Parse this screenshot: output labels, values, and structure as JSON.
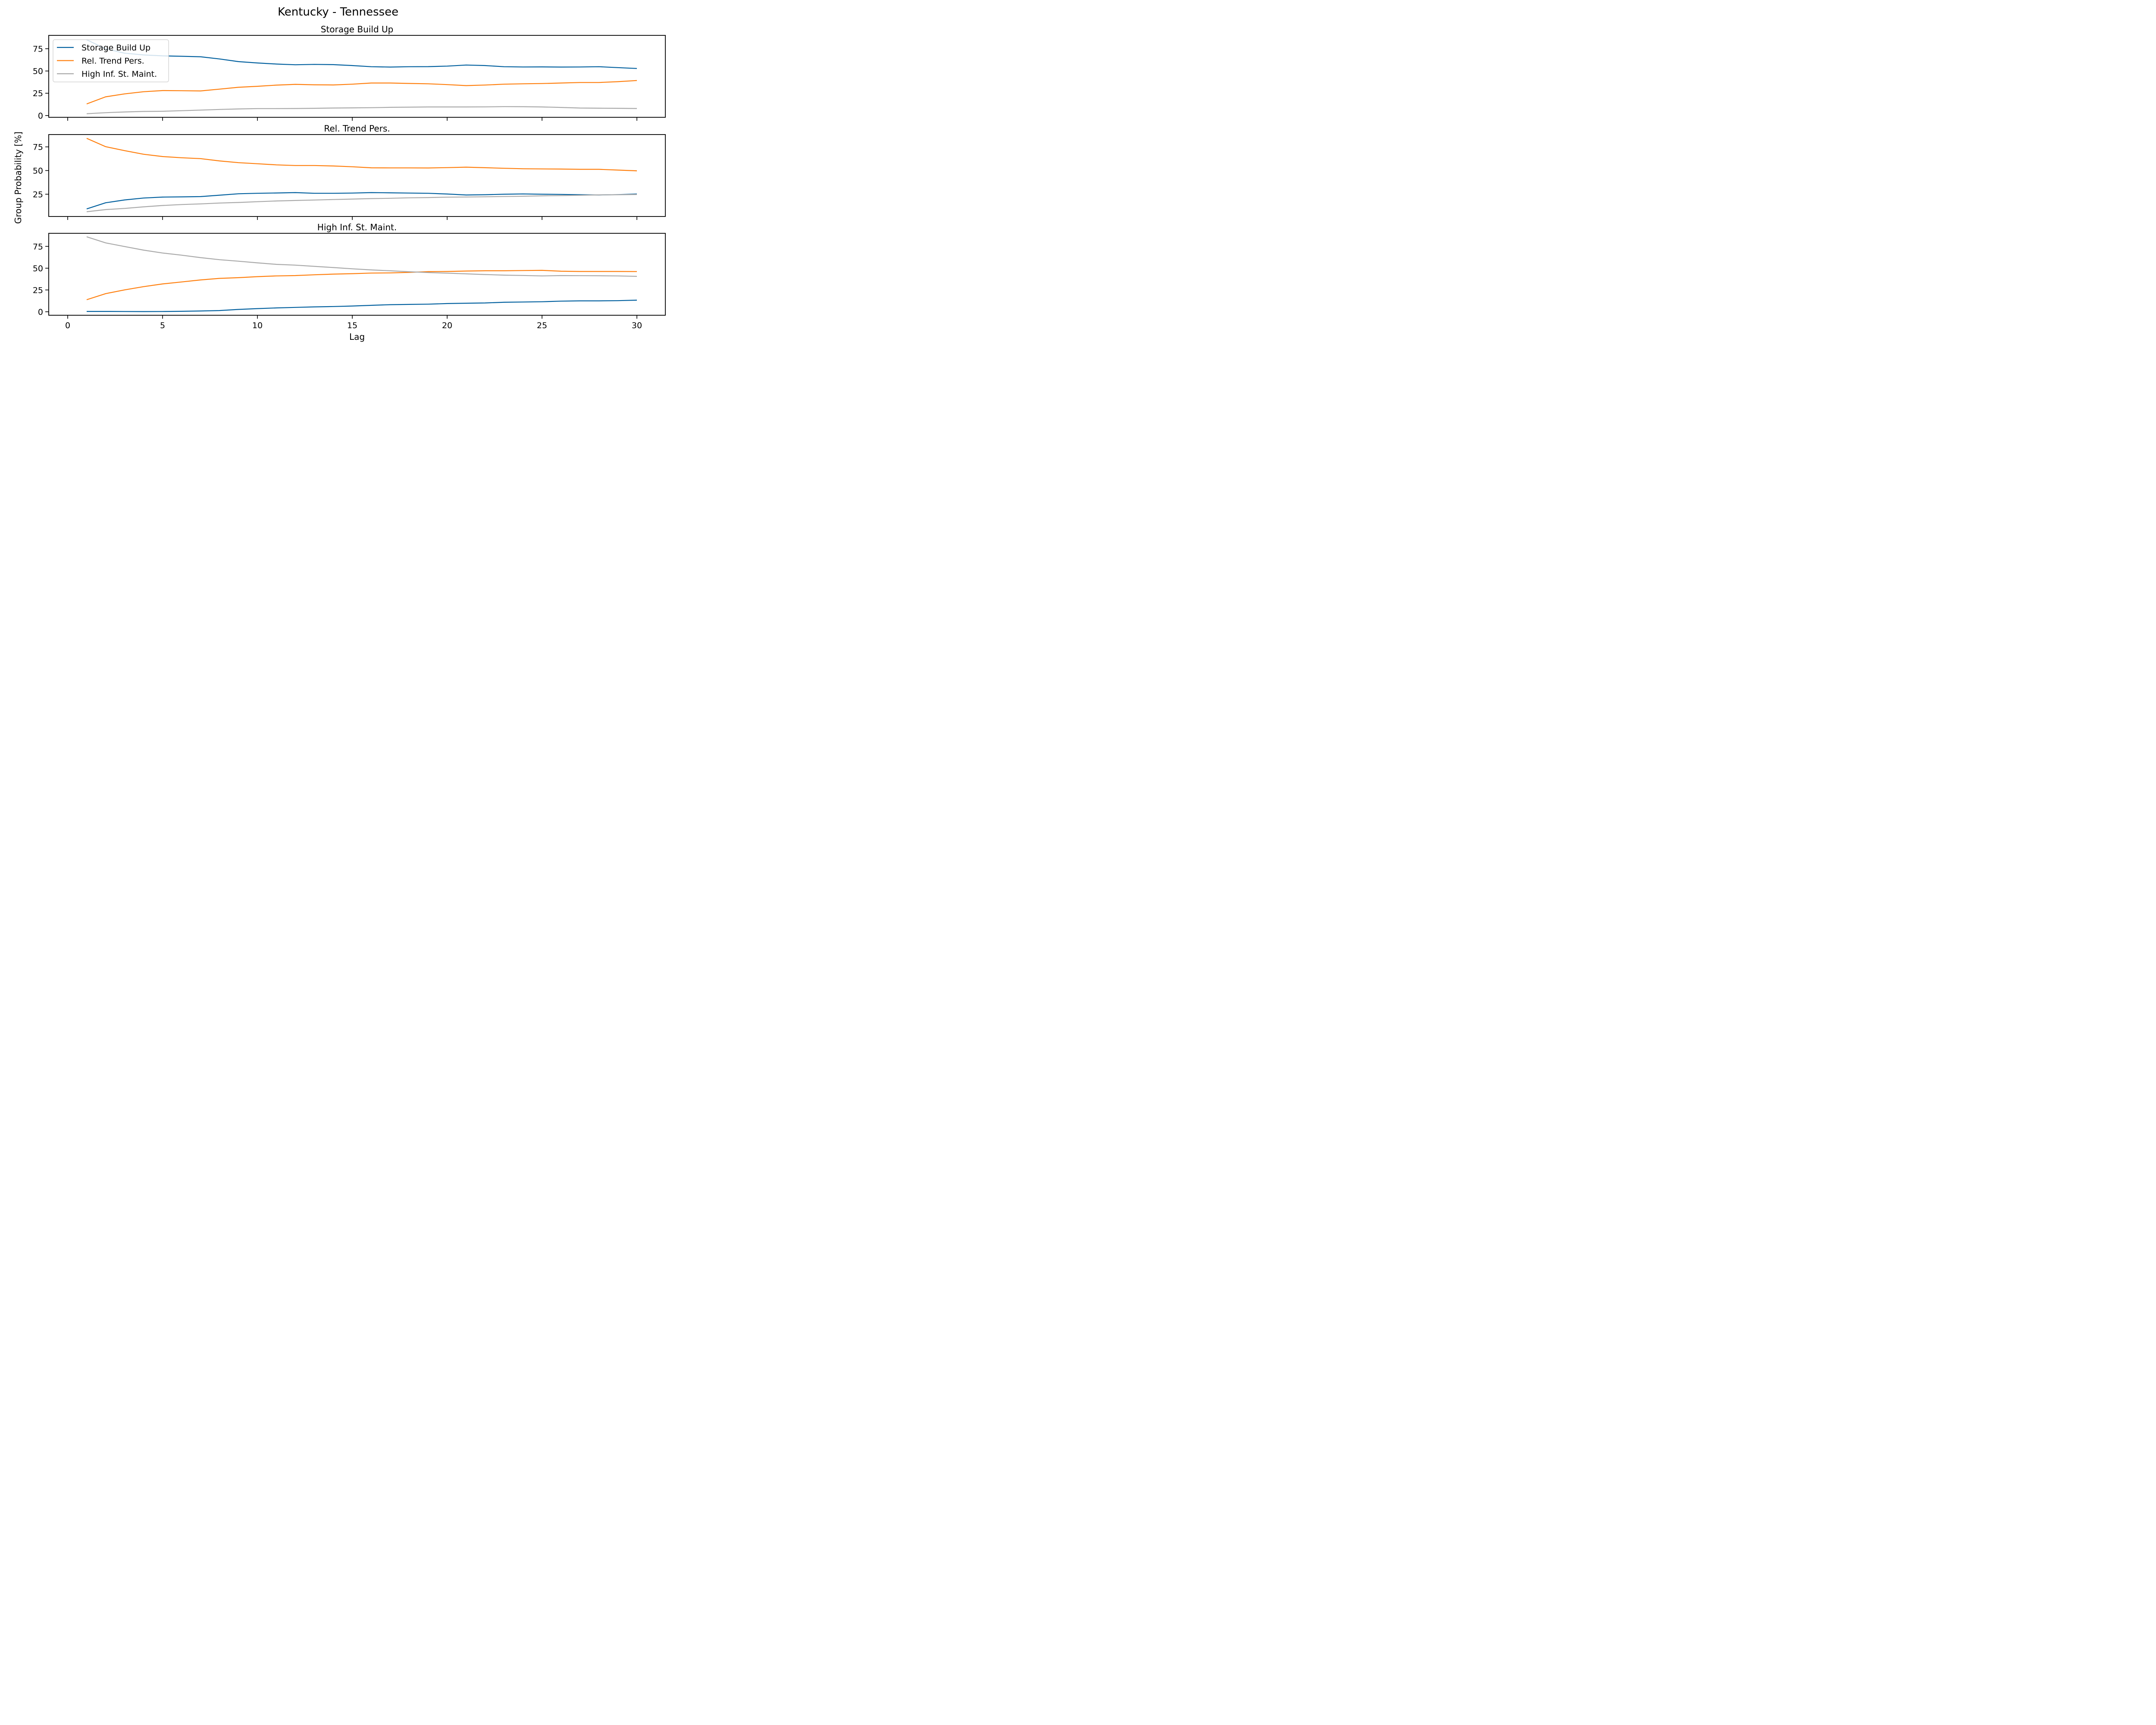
{
  "figure": {
    "title": "Kentucky - Tennessee",
    "xlabel": "Lag",
    "ylabel": "Group Probability [%]"
  },
  "colors": {
    "Storage Build Up": "#005f9e",
    "Rel. Trend Pers.": "#ff7f0e",
    "High Inf. St. Maint.": "#a9a9a9"
  },
  "chart_data": [
    {
      "type": "line",
      "title": "Storage Build Up",
      "xlabel": "Lag",
      "ylabel": "Group Probability [%]",
      "xlim": [
        -1,
        31.5
      ],
      "ylim": [
        -2,
        90
      ],
      "xticks": [
        0,
        5,
        10,
        15,
        20,
        25,
        30
      ],
      "yticks": [
        0,
        25,
        50,
        75
      ],
      "x_ticklabels_visible": false,
      "legend": {
        "loc": "upper-left",
        "entries": [
          "Storage Build Up",
          "Rel. Trend Pers.",
          "High Inf. St. Maint."
        ]
      },
      "x": [
        1,
        2,
        3,
        4,
        5,
        6,
        7,
        8,
        9,
        10,
        11,
        12,
        13,
        14,
        15,
        16,
        17,
        18,
        19,
        20,
        21,
        22,
        23,
        24,
        25,
        26,
        27,
        28,
        29,
        30
      ],
      "series": [
        {
          "name": "Storage Build Up",
          "values": [
            85,
            75,
            70,
            68,
            67,
            66.5,
            66,
            63.5,
            60.5,
            59,
            57.8,
            57,
            57.4,
            57.1,
            56.1,
            54.8,
            54.4,
            54.8,
            54.9,
            55.5,
            56.7,
            56.1,
            54.8,
            54.5,
            54.6,
            54.4,
            54.5,
            54.8,
            53.8,
            52.8
          ]
        },
        {
          "name": "Rel. Trend Pers.",
          "values": [
            13,
            21,
            24.3,
            26.7,
            28,
            27.9,
            27.6,
            29.6,
            31.7,
            32.8,
            34.1,
            35,
            34.5,
            34.3,
            35.2,
            36.5,
            36.5,
            36,
            35.6,
            34.7,
            33.6,
            34.2,
            35.2,
            35.6,
            35.9,
            36.5,
            37.1,
            37.1,
            38,
            39.3
          ]
        },
        {
          "name": "High Inf. St. Maint.",
          "values": [
            2,
            3.2,
            4,
            4.6,
            4.8,
            5.4,
            6.1,
            6.8,
            7.4,
            7.8,
            7.8,
            7.9,
            8.1,
            8.4,
            8.6,
            8.8,
            9.2,
            9.4,
            9.6,
            9.6,
            9.6,
            9.7,
            10,
            9.9,
            9.6,
            9.1,
            8.4,
            8.2,
            8.1,
            7.9
          ]
        }
      ]
    },
    {
      "type": "line",
      "title": "Rel. Trend Pers.",
      "xlabel": "Lag",
      "ylabel": "Group Probability [%]",
      "xlim": [
        -1,
        31.5
      ],
      "ylim": [
        1.5,
        88
      ],
      "xticks": [
        0,
        5,
        10,
        15,
        20,
        25,
        30
      ],
      "yticks": [
        25,
        50,
        75
      ],
      "x_ticklabels_visible": false,
      "x": [
        1,
        2,
        3,
        4,
        5,
        6,
        7,
        8,
        9,
        10,
        11,
        12,
        13,
        14,
        15,
        16,
        17,
        18,
        19,
        20,
        21,
        22,
        23,
        24,
        25,
        26,
        27,
        28,
        29,
        30
      ],
      "series": [
        {
          "name": "Storage Build Up",
          "values": [
            9.5,
            16,
            19,
            21,
            22,
            22.2,
            22.5,
            24,
            25.5,
            26,
            26.3,
            26.7,
            26,
            26,
            26.2,
            26.7,
            26.5,
            26.2,
            26,
            25.2,
            24.2,
            24.5,
            25,
            25.3,
            25,
            24.8,
            24.5,
            24.2,
            24.6,
            25.2
          ]
        },
        {
          "name": "Rel. Trend Pers.",
          "values": [
            84,
            75.2,
            71,
            67.2,
            64.8,
            63.5,
            62.6,
            60.2,
            58.3,
            57.2,
            56,
            55.3,
            55.3,
            54.8,
            54,
            52.9,
            52.8,
            52.8,
            52.7,
            53.1,
            53.6,
            53,
            52.4,
            51.9,
            51.7,
            51.6,
            51.3,
            51.3,
            50.5,
            49.7
          ]
        },
        {
          "name": "High Inf. St. Maint.",
          "values": [
            6.5,
            8.8,
            10,
            11.7,
            13.1,
            14.1,
            14.8,
            15.7,
            16.3,
            17.1,
            17.9,
            18.4,
            18.9,
            19.4,
            19.9,
            20.4,
            20.7,
            21.2,
            21.5,
            21.9,
            22.1,
            22.3,
            22.6,
            22.9,
            23.3,
            23.6,
            23.9,
            24.3,
            24.5,
            24.7
          ]
        }
      ]
    },
    {
      "type": "line",
      "title": "High Inf. St. Maint.",
      "xlabel": "Lag",
      "ylabel": "Group Probability [%]",
      "xlim": [
        -1,
        31.5
      ],
      "ylim": [
        -4,
        90
      ],
      "xticks": [
        0,
        5,
        10,
        15,
        20,
        25,
        30
      ],
      "yticks": [
        0,
        25,
        50,
        75
      ],
      "x_ticklabels_visible": true,
      "x": [
        1,
        2,
        3,
        4,
        5,
        6,
        7,
        8,
        9,
        10,
        11,
        12,
        13,
        14,
        15,
        16,
        17,
        18,
        19,
        20,
        21,
        22,
        23,
        24,
        25,
        26,
        27,
        28,
        29,
        30
      ],
      "series": [
        {
          "name": "Storage Build Up",
          "values": [
            0.4,
            0.4,
            0.3,
            0.2,
            0.3,
            0.5,
            0.9,
            1.4,
            2.7,
            3.6,
            4.4,
            5,
            5.6,
            6,
            6.6,
            7.4,
            8.1,
            8.4,
            8.7,
            9.4,
            9.8,
            10.1,
            10.9,
            11.2,
            11.5,
            12.2,
            12.5,
            12.5,
            12.7,
            13.3
          ]
        },
        {
          "name": "Rel. Trend Pers.",
          "values": [
            13.8,
            20.8,
            25.1,
            28.8,
            31.9,
            34.2,
            36.5,
            38.3,
            39.1,
            40.3,
            41.1,
            41.5,
            42.4,
            43.2,
            43.7,
            44.4,
            44.6,
            45.2,
            46,
            46.2,
            46.7,
            47,
            47,
            47.3,
            47.5,
            46.5,
            46.2,
            46.2,
            46.2,
            46.1
          ]
        },
        {
          "name": "High Inf. St. Maint.",
          "values": [
            86,
            79,
            74.8,
            70.7,
            67.4,
            64.9,
            62.1,
            59.7,
            58,
            56.1,
            54.4,
            53.5,
            52.1,
            50.7,
            49.3,
            48,
            47,
            45.9,
            45,
            44.3,
            43.5,
            42.7,
            42,
            41.6,
            41.1,
            41.5,
            41.4,
            41.3,
            41.1,
            40.6
          ]
        }
      ]
    }
  ]
}
